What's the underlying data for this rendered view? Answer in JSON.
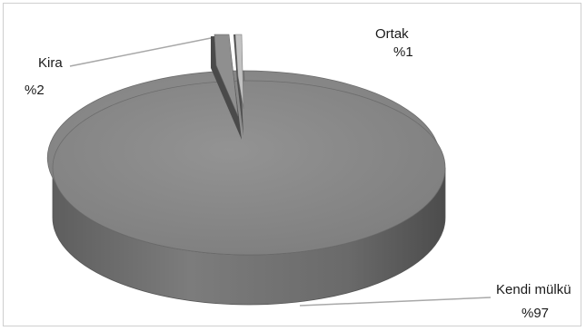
{
  "chart_data": {
    "type": "pie",
    "style": "3d",
    "slices": [
      {
        "label": "Kendi mülkü",
        "value_label": "%97",
        "value": 97,
        "color": "#8a8a8a"
      },
      {
        "label": "Kira",
        "value_label": "%2",
        "value": 2,
        "color": "#9c9c9c"
      },
      {
        "label": "Ortak",
        "value_label": "%1",
        "value": 1,
        "color": "#b5b5b5"
      }
    ]
  }
}
